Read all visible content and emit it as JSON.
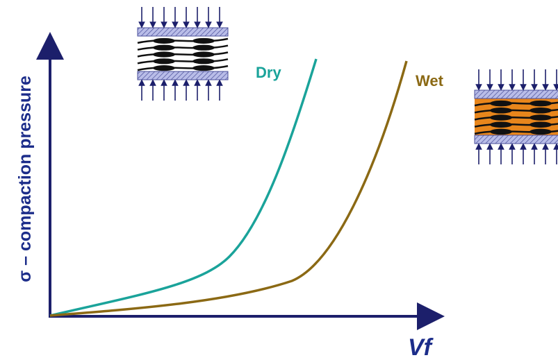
{
  "axes": {
    "y_label": "σ – compaction pressure",
    "x_label": "Vf"
  },
  "curves": [
    {
      "label": "Dry"
    },
    {
      "label": "Wet"
    }
  ]
}
